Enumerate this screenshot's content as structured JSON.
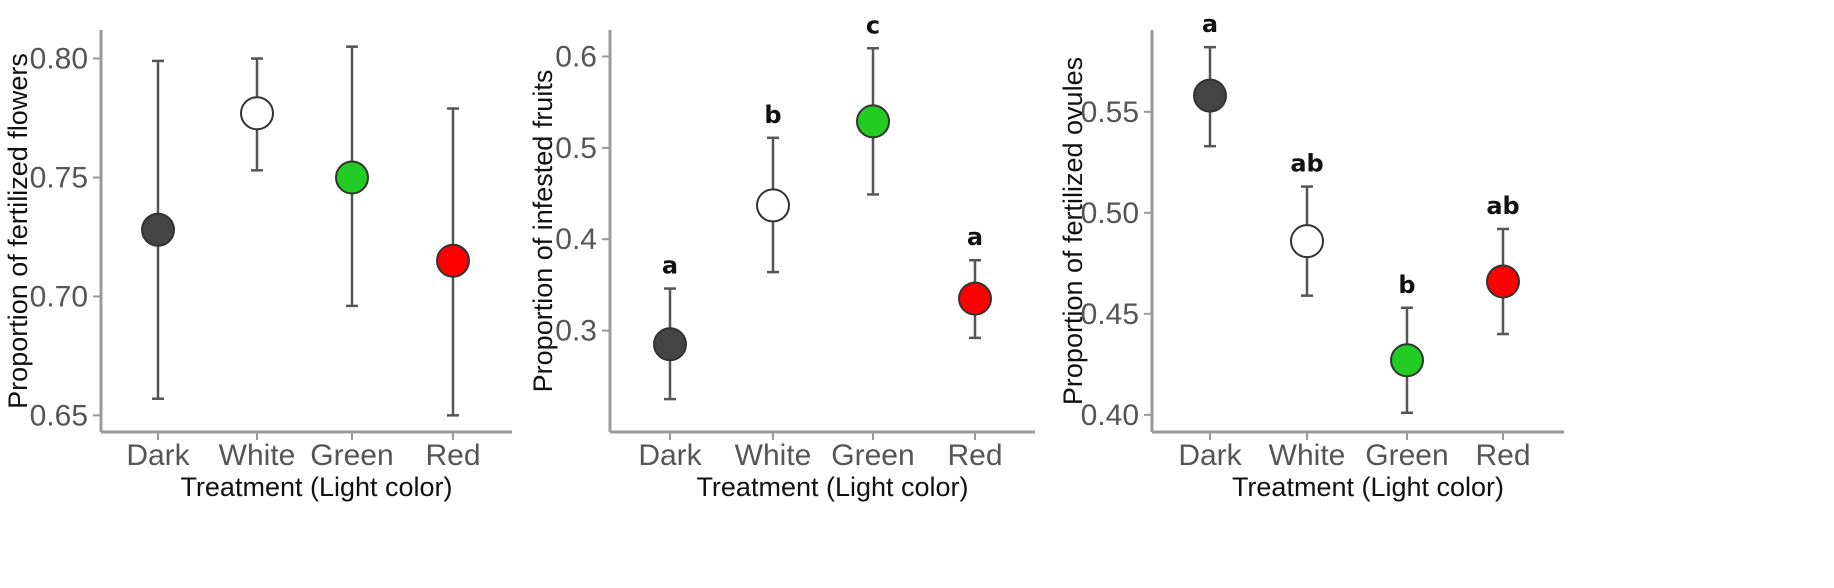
{
  "colors": {
    "Dark": "#444444",
    "White": "#ffffff",
    "Green": "#22cc22",
    "Red": "#ff0000"
  },
  "chart_data": [
    {
      "type": "scatter",
      "title": "",
      "xlabel": "Treatment (Light color)",
      "ylabel": "Proportion of fertilized flowers",
      "categories": [
        "Dark",
        "White",
        "Green",
        "Red"
      ],
      "values": [
        0.728,
        0.777,
        0.75,
        0.715
      ],
      "error_low": [
        0.657,
        0.753,
        0.696,
        0.65
      ],
      "error_high": [
        0.799,
        0.8,
        0.805,
        0.779
      ],
      "letters": [
        "",
        "",
        "",
        ""
      ],
      "ylim": [
        0.643,
        0.812
      ],
      "yticks": [
        0.65,
        0.7,
        0.75,
        0.8
      ],
      "ytick_labels": [
        "0.65",
        "0.70",
        "0.75",
        "0.80"
      ],
      "grid": false,
      "legend": "none"
    },
    {
      "type": "scatter",
      "title": "",
      "xlabel": "Treatment (Light color)",
      "ylabel": "Proportion of infested fruits",
      "categories": [
        "Dark",
        "White",
        "Green",
        "Red"
      ],
      "values": [
        0.285,
        0.437,
        0.529,
        0.335
      ],
      "error_low": [
        0.225,
        0.364,
        0.449,
        0.292
      ],
      "error_high": [
        0.346,
        0.511,
        0.609,
        0.377
      ],
      "letters": [
        "a",
        "b",
        "c",
        "a"
      ],
      "ylim": [
        0.189,
        0.629
      ],
      "yticks": [
        0.3,
        0.4,
        0.5,
        0.6
      ],
      "ytick_labels": [
        "0.3",
        "0.4",
        "0.5",
        "0.6"
      ],
      "grid": false,
      "legend": "none"
    },
    {
      "type": "scatter",
      "title": "",
      "xlabel": "Treatment (Light color)",
      "ylabel": "Proportion of fertilized ovules",
      "categories": [
        "Dark",
        "White",
        "Green",
        "Red"
      ],
      "values": [
        0.558,
        0.486,
        0.427,
        0.466
      ],
      "error_low": [
        0.533,
        0.459,
        0.401,
        0.44
      ],
      "error_high": [
        0.582,
        0.513,
        0.453,
        0.492
      ],
      "letters": [
        "a",
        "ab",
        "b",
        "ab"
      ],
      "ylim": [
        0.3915,
        0.5905
      ],
      "yticks": [
        0.4,
        0.45,
        0.5,
        0.55
      ],
      "ytick_labels": [
        "0.40",
        "0.45",
        "0.50",
        "0.55"
      ],
      "grid": false,
      "legend": "none"
    }
  ]
}
